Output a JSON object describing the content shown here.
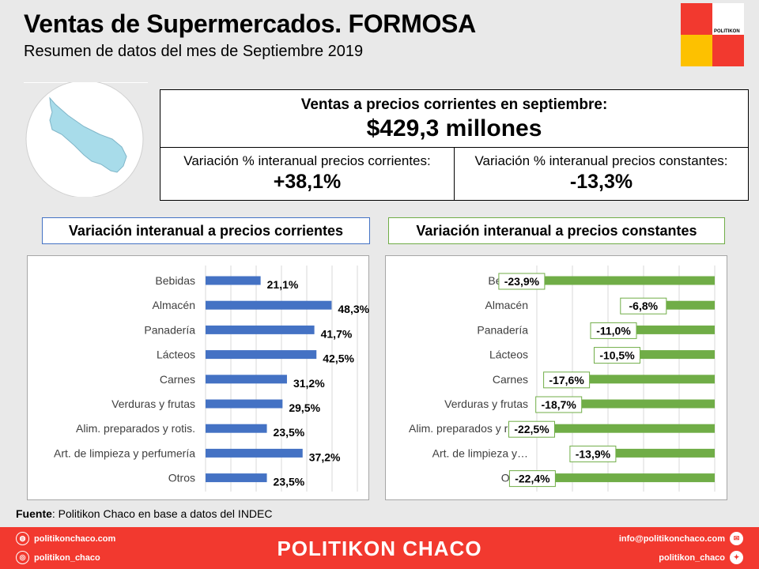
{
  "header": {
    "title": "Ventas de Supermercados. FORMOSA",
    "subtitle": "Resumen de datos del mes de Septiembre 2019"
  },
  "logo": {
    "text": "POLITIKON"
  },
  "summary": {
    "main_label": "Ventas a precios corrientes en septiembre:",
    "main_value": "$429,3 millones",
    "left_label": "Variación % interanual precios corrientes:",
    "left_value": "+38,1%",
    "right_label": "Variación % interanual precios constantes:",
    "right_value": "-13,3%"
  },
  "panels": {
    "left_title": "Variación interanual a precios corrientes",
    "right_title": "Variación interanual a precios constantes"
  },
  "colors": {
    "blue": "#4472c4",
    "green": "#70ad47",
    "red": "#f2392f",
    "yellow": "#fdc100",
    "map": "#a8dcea"
  },
  "chart_data": [
    {
      "type": "bar",
      "orientation": "horizontal",
      "categories": [
        "Bebidas",
        "Almacén",
        "Panadería",
        "Lácteos",
        "Carnes",
        "Verduras y frutas",
        "Alim. preparados y rotis.",
        "Art. de limpieza y perfumería",
        "Otros"
      ],
      "values": [
        21.1,
        48.3,
        41.7,
        42.5,
        31.2,
        29.5,
        23.5,
        37.2,
        23.5
      ],
      "labels": [
        "21,1%",
        "48,3%",
        "41,7%",
        "42,5%",
        "31,2%",
        "29,5%",
        "23,5%",
        "37,2%",
        "23,5%"
      ],
      "title": "Variación interanual a precios corrientes",
      "xlim": [
        0,
        60
      ],
      "grid": true
    },
    {
      "type": "bar",
      "orientation": "horizontal",
      "categories": [
        "Bebidas",
        "Almacén",
        "Panadería",
        "Lácteos",
        "Carnes",
        "Verduras y frutas",
        "Alim. preparados y rotis.",
        "Art. de limpieza y…",
        "Otros"
      ],
      "values": [
        -23.9,
        -6.8,
        -11.0,
        -10.5,
        -17.6,
        -18.7,
        -22.5,
        -13.9,
        -22.4
      ],
      "labels": [
        "-23,9%",
        "-6,8%",
        "-11,0%",
        "-10,5%",
        "-17,6%",
        "-18,7%",
        "-22,5%",
        "-13,9%",
        "-22,4%"
      ],
      "title": "Variación interanual a precios constantes",
      "xlim": [
        -25,
        0
      ],
      "grid": true
    }
  ],
  "source": {
    "label": "Fuente",
    "text": ": Politikon Chaco en base a datos del INDEC"
  },
  "footer": {
    "brand": "POLITIKON CHACO",
    "web": "politikonchaco.com",
    "instagram": "politikon_chaco",
    "email": "info@politikonchaco.com",
    "twitter": "politikon_chaco"
  }
}
